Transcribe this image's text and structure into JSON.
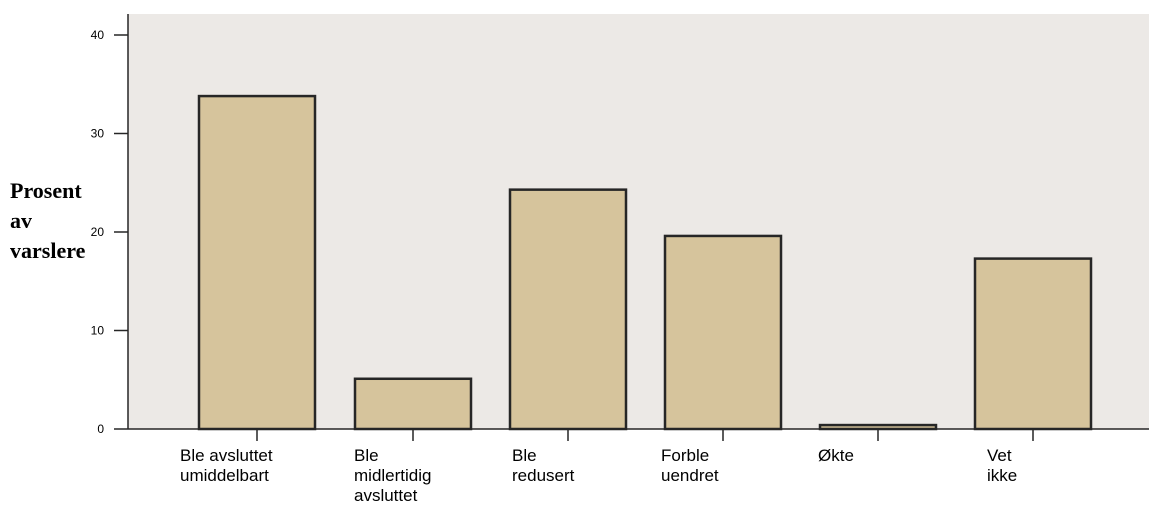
{
  "chart_data": {
    "type": "bar",
    "categories": [
      [
        "Ble avsluttet",
        "umiddelbart"
      ],
      [
        "Ble",
        "midlertidig",
        "avsluttet"
      ],
      [
        "Ble",
        "redusert"
      ],
      [
        "Forble",
        "uendret"
      ],
      [
        "Økte"
      ],
      [
        "Vet",
        "ikke"
      ]
    ],
    "values": [
      33.8,
      5.1,
      24.3,
      19.6,
      0.4,
      17.3
    ],
    "ylabel_lines": [
      "Prosent",
      "av",
      "varslere"
    ],
    "xlabel": "",
    "title": "",
    "ylim": [
      0,
      40
    ],
    "yticks": [
      0,
      10,
      20,
      30,
      40
    ],
    "grid": false,
    "colors": {
      "plot_background": "#ece9e6",
      "bar_fill": "#d6c49c",
      "bar_stroke": "#262626",
      "axis": "#262626"
    }
  }
}
